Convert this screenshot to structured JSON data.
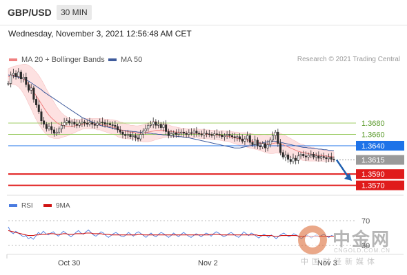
{
  "header": {
    "pair": "GBP/USD",
    "timeframe": "30 MIN"
  },
  "date_line": "Wednesday, November 3, 2021 12:56:48 AM CET",
  "legend": {
    "ma20_label": "MA 20 + Bollinger Bands",
    "ma50_label": "MA 50",
    "research": "Research © 2021 Trading Central"
  },
  "rsi_legend": {
    "rsi_label": "RSI",
    "ma_label": "9MA"
  },
  "watermark": {
    "title": "中金网",
    "url": "CNGOLD.COM.CN",
    "subtitle": "中国财经新媒体"
  },
  "colors": {
    "ma20": "#f08080",
    "ma50": "#3f5b9c",
    "band_fill": "#fde1e1",
    "candle": "#2a2a2a",
    "resistance": "#9ccc65",
    "pivot": "#1e73e8",
    "support": "#e01b1b",
    "current": "#333333",
    "arrow": "#1f5fb0",
    "rsi": "#4a7be0",
    "rsi_ma": "#d01414"
  },
  "chart_data": [
    {
      "type": "candlestick",
      "ylim": [
        1.3555,
        1.3782
      ],
      "x_labels": [
        "Oct 30",
        "Nov 2",
        "Nov 3"
      ],
      "levels": [
        {
          "value": 1.368,
          "label": "1.3680",
          "kind": "resistance"
        },
        {
          "value": 1.366,
          "label": "1.3660",
          "kind": "resistance"
        },
        {
          "value": 1.364,
          "label": "1.3640",
          "kind": "pivot"
        },
        {
          "value": 1.3615,
          "label": "1.3615",
          "kind": "current"
        },
        {
          "value": 1.359,
          "label": "1.3590",
          "kind": "support"
        },
        {
          "value": 1.357,
          "label": "1.3570",
          "kind": "support"
        }
      ],
      "close": [
        1.375,
        1.3765,
        1.3768,
        1.3762,
        1.377,
        1.3758,
        1.3761,
        1.3748,
        1.3738,
        1.3742,
        1.3722,
        1.3712,
        1.37,
        1.3684,
        1.3678,
        1.367,
        1.3674,
        1.3668,
        1.3662,
        1.3664,
        1.367,
        1.3676,
        1.3681,
        1.3684,
        1.368,
        1.3682,
        1.3678,
        1.3676,
        1.368,
        1.3682,
        1.368,
        1.3678,
        1.3681,
        1.3678,
        1.3676,
        1.368,
        1.3682,
        1.3681,
        1.3678,
        1.3679,
        1.3677,
        1.3676,
        1.3674,
        1.3668,
        1.3664,
        1.366,
        1.3658,
        1.366,
        1.3656,
        1.3658,
        1.3654,
        1.3652,
        1.366,
        1.3666,
        1.367,
        1.3676,
        1.3678,
        1.3682,
        1.3676,
        1.3678,
        1.3672,
        1.3677,
        1.3665,
        1.3658,
        1.3661,
        1.3663,
        1.366,
        1.3662,
        1.3664,
        1.3662,
        1.366,
        1.3663,
        1.3662,
        1.3666,
        1.3662,
        1.3661,
        1.3659,
        1.3662,
        1.3661,
        1.366,
        1.3658,
        1.3661,
        1.366,
        1.3659,
        1.3656,
        1.3658,
        1.366,
        1.3658,
        1.3656,
        1.3654,
        1.3656,
        1.3652,
        1.3648,
        1.3652,
        1.3658,
        1.3646,
        1.3642,
        1.365,
        1.364,
        1.3638,
        1.3644,
        1.3636,
        1.3642,
        1.365,
        1.3658,
        1.3664,
        1.3644,
        1.3628,
        1.362,
        1.3624,
        1.3616,
        1.3612,
        1.3618,
        1.3614,
        1.3622,
        1.3625,
        1.3622,
        1.362,
        1.3623,
        1.3625,
        1.362,
        1.3622,
        1.3618,
        1.3621,
        1.3619,
        1.3617,
        1.362,
        1.3616,
        1.3615
      ],
      "ma50": [
        1.3765,
        1.3764,
        1.3763,
        1.3762,
        1.3761,
        1.376,
        1.3758,
        1.3756,
        1.3754,
        1.3751,
        1.3748,
        1.3745,
        1.3742,
        1.3739,
        1.3735,
        1.3732,
        1.3729,
        1.3726,
        1.3723,
        1.372,
        1.3717,
        1.3714,
        1.3711,
        1.3708,
        1.3705,
        1.3702,
        1.3699,
        1.3696,
        1.3693,
        1.369,
        1.3688,
        1.3686,
        1.3684,
        1.3682,
        1.368,
        1.3678,
        1.3676,
        1.3675,
        1.3674,
        1.3673,
        1.3672,
        1.3671,
        1.367,
        1.3669,
        1.3668,
        1.3667,
        1.3667,
        1.3666,
        1.3666,
        1.3665,
        1.3665,
        1.3664,
        1.3664,
        1.3663,
        1.3663,
        1.3662,
        1.3662,
        1.3661,
        1.3661,
        1.366,
        1.366,
        1.3659,
        1.3659,
        1.3658,
        1.3658,
        1.3657,
        1.3657,
        1.3656,
        1.3656,
        1.3655,
        1.3655,
        1.3654,
        1.3653,
        1.3652,
        1.3651,
        1.365,
        1.3649,
        1.3648,
        1.3647,
        1.3646,
        1.3645,
        1.3644,
        1.3643,
        1.3642,
        1.3641,
        1.364,
        1.3639,
        1.3638,
        1.3637,
        1.3636,
        1.3636,
        1.3636,
        1.3637,
        1.3638,
        1.3639,
        1.364,
        1.3641,
        1.3642,
        1.3643,
        1.3644,
        1.3645,
        1.3646,
        1.3647,
        1.3648,
        1.3648,
        1.3648,
        1.3647,
        1.3646,
        1.3645,
        1.3644,
        1.3643,
        1.3642,
        1.3641,
        1.364,
        1.3639,
        1.3638,
        1.3637,
        1.3637,
        1.3636,
        1.3636,
        1.3635,
        1.3635,
        1.3634,
        1.3634,
        1.3633,
        1.3633,
        1.3632,
        1.3632,
        1.3631
      ],
      "ma20": [
        1.3762,
        1.3763,
        1.3764,
        1.3764,
        1.3763,
        1.3761,
        1.3758,
        1.3754,
        1.3748,
        1.3742,
        1.3735,
        1.3728,
        1.3721,
        1.3714,
        1.3707,
        1.37,
        1.3694,
        1.3689,
        1.3685,
        1.3681,
        1.3678,
        1.3676,
        1.3675,
        1.3674,
        1.3674,
        1.3674,
        1.3675,
        1.3676,
        1.3677,
        1.3678,
        1.3679,
        1.3679,
        1.3679,
        1.3679,
        1.3679,
        1.3678,
        1.3678,
        1.3677,
        1.3676,
        1.3675,
        1.3674,
        1.3673,
        1.3672,
        1.367,
        1.3668,
        1.3667,
        1.3666,
        1.3665,
        1.3664,
        1.3664,
        1.3663,
        1.3662,
        1.3662,
        1.3662,
        1.3663,
        1.3664,
        1.3665,
        1.3666,
        1.3667,
        1.3667,
        1.3667,
        1.3667,
        1.3667,
        1.3666,
        1.3665,
        1.3665,
        1.3664,
        1.3664,
        1.3663,
        1.3663,
        1.3662,
        1.3662,
        1.3662,
        1.3662,
        1.3662,
        1.3661,
        1.3661,
        1.3661,
        1.366,
        1.366,
        1.3659,
        1.3659,
        1.3659,
        1.3658,
        1.3658,
        1.3657,
        1.3657,
        1.3656,
        1.3655,
        1.3654,
        1.3653,
        1.3652,
        1.3651,
        1.3651,
        1.365,
        1.3649,
        1.3648,
        1.3647,
        1.3646,
        1.3645,
        1.3644,
        1.3643,
        1.3643,
        1.3643,
        1.3644,
        1.3645,
        1.3645,
        1.3644,
        1.3642,
        1.364,
        1.3638,
        1.3636,
        1.3634,
        1.3632,
        1.363,
        1.3629,
        1.3628,
        1.3627,
        1.3626,
        1.3625,
        1.3625,
        1.3624,
        1.3623,
        1.3623,
        1.3622,
        1.3622,
        1.3621,
        1.3621,
        1.362
      ],
      "bb_width": [
        0.0014,
        0.0015,
        0.0016,
        0.0017,
        0.0019,
        0.0022,
        0.0026,
        0.003,
        0.0034,
        0.0037,
        0.004,
        0.0042,
        0.0043,
        0.0043,
        0.0042,
        0.004,
        0.0038,
        0.0035,
        0.0032,
        0.0028,
        0.0025,
        0.0022,
        0.0019,
        0.0017,
        0.0015,
        0.0013,
        0.0012,
        0.0011,
        0.001,
        0.0009,
        0.0009,
        0.0009,
        0.0009,
        0.0009,
        0.0009,
        0.001,
        0.001,
        0.0011,
        0.0011,
        0.0012,
        0.0012,
        0.0013,
        0.0013,
        0.0014,
        0.0014,
        0.0014,
        0.0013,
        0.0013,
        0.0012,
        0.0012,
        0.0012,
        0.0013,
        0.0014,
        0.0015,
        0.0016,
        0.0017,
        0.0017,
        0.0017,
        0.0016,
        0.0015,
        0.0014,
        0.0013,
        0.0012,
        0.0011,
        0.001,
        0.0009,
        0.0009,
        0.0008,
        0.0008,
        0.0008,
        0.0008,
        0.0008,
        0.0008,
        0.0008,
        0.0008,
        0.0008,
        0.0008,
        0.0008,
        0.0008,
        0.0008,
        0.0008,
        0.0008,
        0.0008,
        0.0008,
        0.0009,
        0.0009,
        0.0009,
        0.0009,
        0.001,
        0.001,
        0.0011,
        0.0011,
        0.0012,
        0.0012,
        0.0013,
        0.0013,
        0.0013,
        0.0013,
        0.0013,
        0.0014,
        0.0014,
        0.0015,
        0.0016,
        0.0017,
        0.0018,
        0.0018,
        0.0018,
        0.0018,
        0.0018,
        0.0018,
        0.0017,
        0.0017,
        0.0016,
        0.0016,
        0.0015,
        0.0014,
        0.0014,
        0.0013,
        0.0013,
        0.0012,
        0.0012,
        0.0011,
        0.0011,
        0.001,
        0.001,
        0.001,
        0.0009,
        0.0009,
        0.0009
      ],
      "projection": {
        "from": 1.3615,
        "to": 1.3578
      }
    },
    {
      "type": "line",
      "ylim": [
        20,
        80
      ],
      "y_ticks": [
        70,
        30
      ],
      "series": [
        {
          "name": "RSI",
          "values": [
            60,
            52,
            49,
            53,
            50,
            47,
            44,
            46,
            41,
            43,
            40,
            45,
            51,
            48,
            53,
            49,
            47,
            50,
            52,
            48,
            45,
            49,
            53,
            50,
            47,
            44,
            47,
            51,
            54,
            50,
            48,
            52,
            55,
            51,
            47,
            45,
            48,
            52,
            50,
            46,
            43,
            46,
            49,
            51,
            48,
            45,
            44,
            47,
            51,
            48,
            45,
            50,
            52,
            49,
            46,
            43,
            47,
            50,
            46,
            44,
            48,
            51,
            49,
            46,
            43,
            46,
            50,
            47,
            44,
            48,
            51,
            48,
            45,
            43,
            46,
            49,
            47,
            44,
            47,
            50,
            48,
            45,
            49,
            52,
            50,
            47,
            44,
            46,
            49,
            51,
            48,
            45,
            43,
            47,
            52,
            49,
            46,
            50,
            48,
            45,
            42,
            45,
            48,
            46,
            43,
            47,
            44,
            41,
            45,
            48,
            50,
            47,
            44,
            46,
            49,
            47,
            44,
            41,
            44,
            47,
            45,
            42,
            45,
            47,
            44,
            46,
            48,
            45,
            43,
            46,
            45
          ]
        },
        {
          "name": "9MA",
          "values": [
            54,
            53,
            52,
            51,
            50,
            49,
            48,
            47,
            46,
            46,
            46,
            47,
            47,
            48,
            48,
            48,
            49,
            49,
            49,
            48,
            48,
            48,
            49,
            49,
            48,
            48,
            48,
            49,
            49,
            49,
            49,
            50,
            50,
            50,
            49,
            49,
            49,
            49,
            48,
            48,
            48,
            47,
            47,
            47,
            47,
            47,
            47,
            47,
            47,
            47,
            47,
            47,
            48,
            48,
            47,
            47,
            47,
            47,
            47,
            47,
            47,
            47,
            47,
            47,
            47,
            47,
            47,
            47,
            47,
            47,
            47,
            47,
            47,
            47,
            47,
            47,
            47,
            47,
            47,
            47,
            47,
            48,
            48,
            48,
            48,
            47,
            47,
            47,
            47,
            47,
            47,
            47,
            47,
            47,
            47,
            47,
            47,
            47,
            47,
            47,
            46,
            46,
            46,
            46,
            46,
            46,
            45,
            45,
            45,
            46,
            46,
            46,
            46,
            46,
            46,
            46,
            45,
            45,
            45,
            45,
            45,
            45,
            45,
            45,
            45,
            45,
            45,
            45,
            45,
            45,
            45
          ]
        }
      ]
    }
  ]
}
